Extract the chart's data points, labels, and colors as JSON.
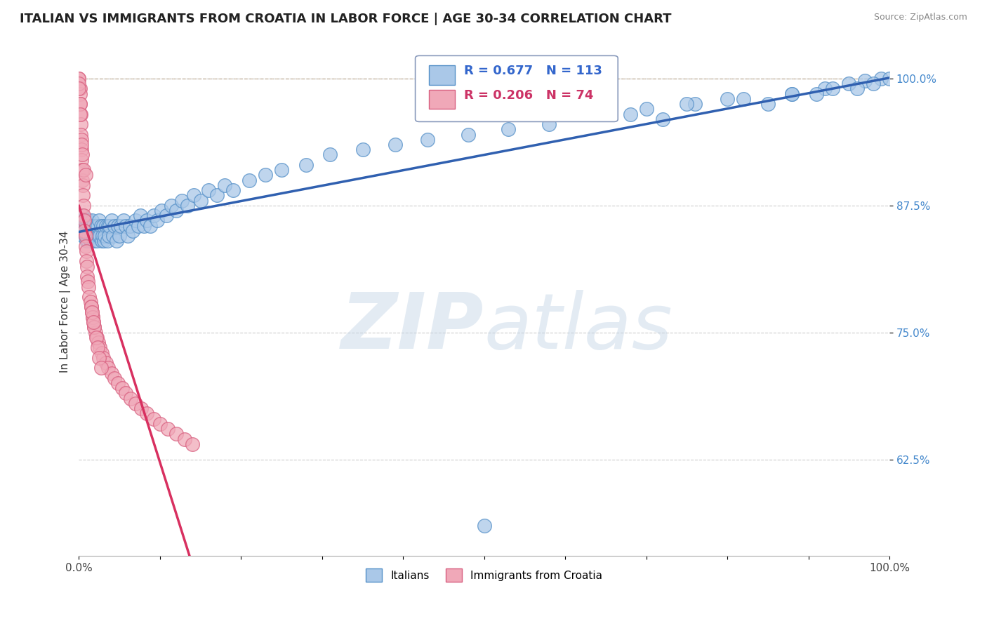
{
  "title": "ITALIAN VS IMMIGRANTS FROM CROATIA IN LABOR FORCE | AGE 30-34 CORRELATION CHART",
  "source": "Source: ZipAtlas.com",
  "ylabel": "In Labor Force | Age 30-34",
  "xlim": [
    0.0,
    1.0
  ],
  "ylim": [
    0.53,
    1.03
  ],
  "yticks": [
    0.625,
    0.75,
    0.875,
    1.0
  ],
  "ytick_labels": [
    "62.5%",
    "75.0%",
    "87.5%",
    "100.0%"
  ],
  "xtick_positions": [
    0.0,
    0.1,
    0.2,
    0.3,
    0.4,
    0.5,
    0.6,
    0.7,
    0.8,
    0.9,
    1.0
  ],
  "xtick_labels": [
    "0.0%",
    "",
    "",
    "",
    "",
    "",
    "",
    "",
    "",
    "",
    "100.0%"
  ],
  "blue_color": "#aac8e8",
  "blue_edge": "#5590c8",
  "pink_color": "#f0a8b8",
  "pink_edge": "#d86080",
  "trend_blue": "#3060b0",
  "trend_pink": "#d83060",
  "R_blue": 0.677,
  "N_blue": 113,
  "R_pink": 0.206,
  "N_pink": 74,
  "legend_italians": "Italians",
  "legend_croatia": "Immigrants from Croatia",
  "watermark_zip": "ZIP",
  "watermark_atlas": "atlas",
  "blue_scatter_x": [
    0.002,
    0.003,
    0.003,
    0.004,
    0.004,
    0.005,
    0.005,
    0.006,
    0.006,
    0.007,
    0.007,
    0.008,
    0.008,
    0.009,
    0.009,
    0.01,
    0.01,
    0.011,
    0.011,
    0.012,
    0.012,
    0.013,
    0.013,
    0.014,
    0.015,
    0.015,
    0.016,
    0.017,
    0.018,
    0.019,
    0.02,
    0.021,
    0.022,
    0.023,
    0.024,
    0.025,
    0.026,
    0.027,
    0.028,
    0.029,
    0.03,
    0.031,
    0.032,
    0.033,
    0.035,
    0.036,
    0.037,
    0.038,
    0.04,
    0.042,
    0.044,
    0.046,
    0.048,
    0.05,
    0.052,
    0.055,
    0.058,
    0.06,
    0.063,
    0.066,
    0.07,
    0.073,
    0.076,
    0.08,
    0.084,
    0.088,
    0.092,
    0.097,
    0.102,
    0.108,
    0.114,
    0.12,
    0.127,
    0.134,
    0.142,
    0.15,
    0.16,
    0.17,
    0.18,
    0.19,
    0.21,
    0.23,
    0.25,
    0.28,
    0.31,
    0.35,
    0.39,
    0.43,
    0.48,
    0.53,
    0.58,
    0.64,
    0.7,
    0.76,
    0.82,
    0.88,
    0.92,
    0.95,
    0.97,
    0.99,
    0.5,
    0.72,
    0.85,
    0.91,
    0.96,
    0.98,
    1.0,
    0.6,
    0.75,
    0.8,
    0.68,
    0.88,
    0.93
  ],
  "blue_scatter_y": [
    0.855,
    0.86,
    0.85,
    0.865,
    0.855,
    0.86,
    0.845,
    0.855,
    0.85,
    0.86,
    0.855,
    0.845,
    0.86,
    0.855,
    0.84,
    0.86,
    0.845,
    0.855,
    0.84,
    0.845,
    0.86,
    0.845,
    0.855,
    0.84,
    0.855,
    0.845,
    0.86,
    0.845,
    0.855,
    0.84,
    0.845,
    0.855,
    0.84,
    0.855,
    0.845,
    0.86,
    0.845,
    0.855,
    0.84,
    0.845,
    0.855,
    0.84,
    0.845,
    0.855,
    0.84,
    0.855,
    0.845,
    0.855,
    0.86,
    0.845,
    0.855,
    0.84,
    0.855,
    0.845,
    0.855,
    0.86,
    0.855,
    0.845,
    0.855,
    0.85,
    0.86,
    0.855,
    0.865,
    0.855,
    0.86,
    0.855,
    0.865,
    0.86,
    0.87,
    0.865,
    0.875,
    0.87,
    0.88,
    0.875,
    0.885,
    0.88,
    0.89,
    0.885,
    0.895,
    0.89,
    0.9,
    0.905,
    0.91,
    0.915,
    0.925,
    0.93,
    0.935,
    0.94,
    0.945,
    0.95,
    0.955,
    0.965,
    0.97,
    0.975,
    0.98,
    0.985,
    0.99,
    0.995,
    0.998,
    1.0,
    0.56,
    0.96,
    0.975,
    0.985,
    0.99,
    0.995,
    1.0,
    0.97,
    0.975,
    0.98,
    0.965,
    0.985,
    0.99
  ],
  "pink_scatter_x": [
    0.0,
    0.0,
    0.001,
    0.001,
    0.001,
    0.002,
    0.002,
    0.002,
    0.003,
    0.003,
    0.003,
    0.004,
    0.004,
    0.005,
    0.005,
    0.006,
    0.006,
    0.007,
    0.007,
    0.008,
    0.008,
    0.009,
    0.009,
    0.01,
    0.01,
    0.011,
    0.012,
    0.013,
    0.014,
    0.015,
    0.016,
    0.017,
    0.018,
    0.019,
    0.02,
    0.022,
    0.024,
    0.026,
    0.028,
    0.03,
    0.033,
    0.036,
    0.04,
    0.044,
    0.048,
    0.053,
    0.058,
    0.064,
    0.07,
    0.077,
    0.084,
    0.092,
    0.1,
    0.11,
    0.12,
    0.13,
    0.14,
    0.015,
    0.017,
    0.019,
    0.021,
    0.023,
    0.025,
    0.027,
    0.001,
    0.001,
    0.0,
    0.0,
    0.003,
    0.004,
    0.006,
    0.008,
    0.016,
    0.018
  ],
  "pink_scatter_y": [
    1.0,
    1.0,
    0.99,
    0.985,
    0.975,
    0.965,
    0.955,
    0.945,
    0.94,
    0.93,
    0.92,
    0.91,
    0.9,
    0.895,
    0.885,
    0.875,
    0.865,
    0.86,
    0.85,
    0.845,
    0.835,
    0.83,
    0.82,
    0.815,
    0.805,
    0.8,
    0.795,
    0.785,
    0.78,
    0.775,
    0.77,
    0.765,
    0.76,
    0.755,
    0.75,
    0.745,
    0.74,
    0.735,
    0.73,
    0.725,
    0.72,
    0.715,
    0.71,
    0.705,
    0.7,
    0.695,
    0.69,
    0.685,
    0.68,
    0.675,
    0.67,
    0.665,
    0.66,
    0.655,
    0.65,
    0.645,
    0.64,
    0.775,
    0.765,
    0.755,
    0.745,
    0.735,
    0.725,
    0.715,
    0.975,
    0.965,
    0.995,
    0.99,
    0.935,
    0.925,
    0.91,
    0.905,
    0.77,
    0.76
  ]
}
